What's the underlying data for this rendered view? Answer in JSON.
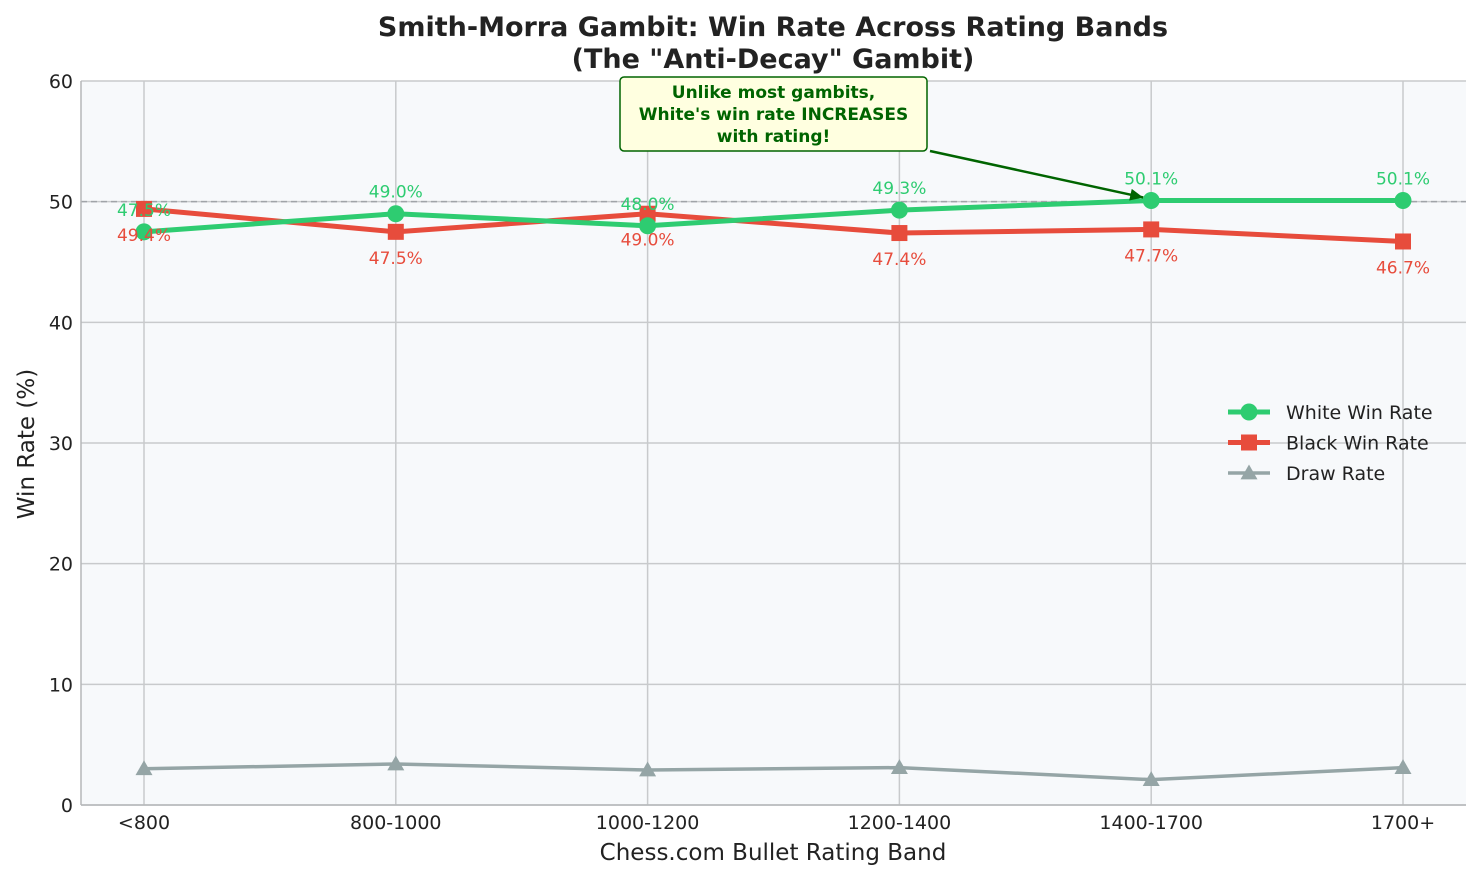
{
  "chart_data": {
    "type": "line",
    "title": "Smith-Morra Gambit: Win Rate Across Rating Bands",
    "subtitle": "(The \"Anti-Decay\" Gambit)",
    "xlabel": "Chess.com Bullet Rating Band",
    "ylabel": "Win Rate (%)",
    "categories": [
      "<800",
      "800-1000",
      "1000-1200",
      "1200-1400",
      "1400-1700",
      "1700+"
    ],
    "ylim": [
      0,
      60
    ],
    "yticks": [
      0,
      10,
      20,
      30,
      40,
      50,
      60
    ],
    "grid": true,
    "legend_position": "center-right",
    "reference_line": {
      "y": 50,
      "style": "dashed"
    },
    "series": [
      {
        "name": "White Win Rate",
        "values": [
          47.5,
          49.0,
          48.0,
          49.3,
          50.1,
          50.1
        ],
        "labels": [
          "47.5%",
          "49.0%",
          "48.0%",
          "49.3%",
          "50.1%",
          "50.1%"
        ],
        "color": "#2ecc71",
        "marker": "circle"
      },
      {
        "name": "Black Win Rate",
        "values": [
          49.4,
          47.5,
          49.0,
          47.4,
          47.7,
          46.7
        ],
        "labels": [
          "49.4%",
          "47.5%",
          "49.0%",
          "47.4%",
          "47.7%",
          "46.7%"
        ],
        "color": "#e74c3c",
        "marker": "square"
      },
      {
        "name": "Draw Rate",
        "values": [
          3.0,
          3.4,
          2.9,
          3.1,
          2.1,
          3.1
        ],
        "color": "#95a5a6",
        "marker": "triangle"
      }
    ],
    "annotation": {
      "lines": [
        "Unlike most gambits,",
        "White's win rate INCREASES",
        "with rating!"
      ],
      "target_category": "1400-1700",
      "target_value": 50.1,
      "text_color": "#006400",
      "box_fill": "#ffffe0"
    }
  },
  "colors": {
    "plot_background": "#f7f9fb",
    "grid": "#c8cacc",
    "axis": "#b5b7b9",
    "reference_line": "#a0a4a8"
  }
}
